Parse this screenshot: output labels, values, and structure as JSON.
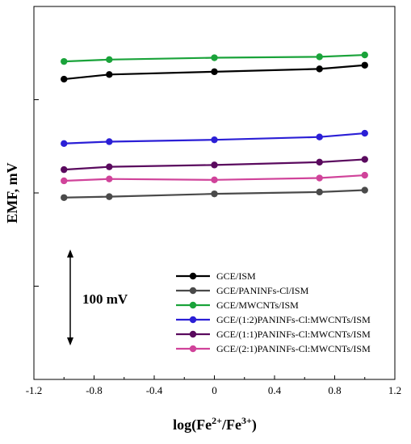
{
  "chart_data": {
    "type": "line",
    "xlabel": "log(Fe²⁺/Fe³⁺)",
    "ylabel": "EMF, mV",
    "xlim": [
      -1.2,
      1.2
    ],
    "xticks": [
      "-1.2",
      "-0.8",
      "-0.4",
      "0",
      "0.4",
      "0.8",
      "1.2"
    ],
    "ylim": [
      0,
      400
    ],
    "grid": false,
    "legend_position": "bottom-right",
    "x": [
      -1.0,
      -0.699,
      0.0,
      0.699,
      1.0
    ],
    "series": [
      {
        "name": "GCE/ISM",
        "color": "#000000",
        "values": [
          322,
          327,
          330,
          333,
          337
        ]
      },
      {
        "name": "GCE/PANINFs-Cl/ISM",
        "color": "#4a4a4a",
        "values": [
          195,
          196,
          199,
          201,
          203
        ]
      },
      {
        "name": "GCE/MWCNTs/ISM",
        "color": "#1aa33a",
        "values": [
          341,
          343,
          345,
          346,
          348
        ]
      },
      {
        "name": "GCE/(1:2)PANINFs-Cl:MWCNTs/ISM",
        "color": "#2b1fd6",
        "values": [
          253,
          255,
          257,
          260,
          264
        ]
      },
      {
        "name": "GCE/(1:1)PANINFs-Cl:MWCNTs/ISM",
        "color": "#5a0a5e",
        "values": [
          225,
          228,
          230,
          233,
          236
        ]
      },
      {
        "name": "GCE/(2:1)PANINFs-Cl:MWCNTs/ISM",
        "color": "#d0439a",
        "values": [
          213,
          215,
          214,
          216,
          219
        ]
      }
    ],
    "scale_bar": {
      "label": "100 mV",
      "value": 100
    }
  }
}
